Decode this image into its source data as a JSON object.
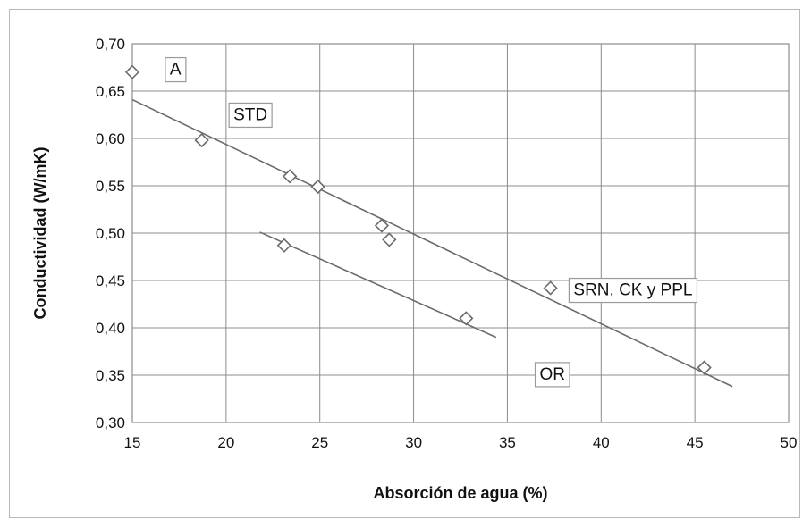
{
  "chart_data": {
    "type": "scatter",
    "title": "",
    "xlabel": "Absorción de agua (%)",
    "ylabel": "Conductividad (W/mK)",
    "xlim": [
      15,
      50
    ],
    "ylim": [
      0.3,
      0.7
    ],
    "x_ticks": [
      15,
      20,
      25,
      30,
      35,
      40,
      45,
      50
    ],
    "y_ticks": [
      0.3,
      0.35,
      0.4,
      0.45,
      0.5,
      0.55,
      0.6,
      0.65,
      0.7
    ],
    "x_tick_labels": [
      "15",
      "20",
      "25",
      "30",
      "35",
      "40",
      "45",
      "50"
    ],
    "y_tick_labels": [
      "0,30",
      "0,35",
      "0,40",
      "0,45",
      "0,50",
      "0,55",
      "0,60",
      "0,65",
      "0,70"
    ],
    "grid": true,
    "legend": "none",
    "points": [
      {
        "x": 15.0,
        "y": 0.67
      },
      {
        "x": 18.7,
        "y": 0.598
      },
      {
        "x": 23.4,
        "y": 0.56
      },
      {
        "x": 24.9,
        "y": 0.549
      },
      {
        "x": 28.3,
        "y": 0.508
      },
      {
        "x": 28.7,
        "y": 0.493
      },
      {
        "x": 23.1,
        "y": 0.487
      },
      {
        "x": 32.8,
        "y": 0.41
      },
      {
        "x": 37.3,
        "y": 0.442
      },
      {
        "x": 45.5,
        "y": 0.358
      }
    ],
    "trendlines": [
      {
        "x": [
          15.0,
          47.0
        ],
        "y": [
          0.641,
          0.338
        ]
      },
      {
        "x": [
          21.8,
          34.4
        ],
        "y": [
          0.501,
          0.39
        ]
      }
    ],
    "annotations": [
      {
        "text": "A",
        "x": 17.3,
        "y": 0.674
      },
      {
        "text": "STD",
        "x": 21.3,
        "y": 0.626
      },
      {
        "text": "SRN, CK y PPL",
        "x": 41.7,
        "y": 0.441
      },
      {
        "text": "OR",
        "x": 37.4,
        "y": 0.352
      }
    ]
  }
}
